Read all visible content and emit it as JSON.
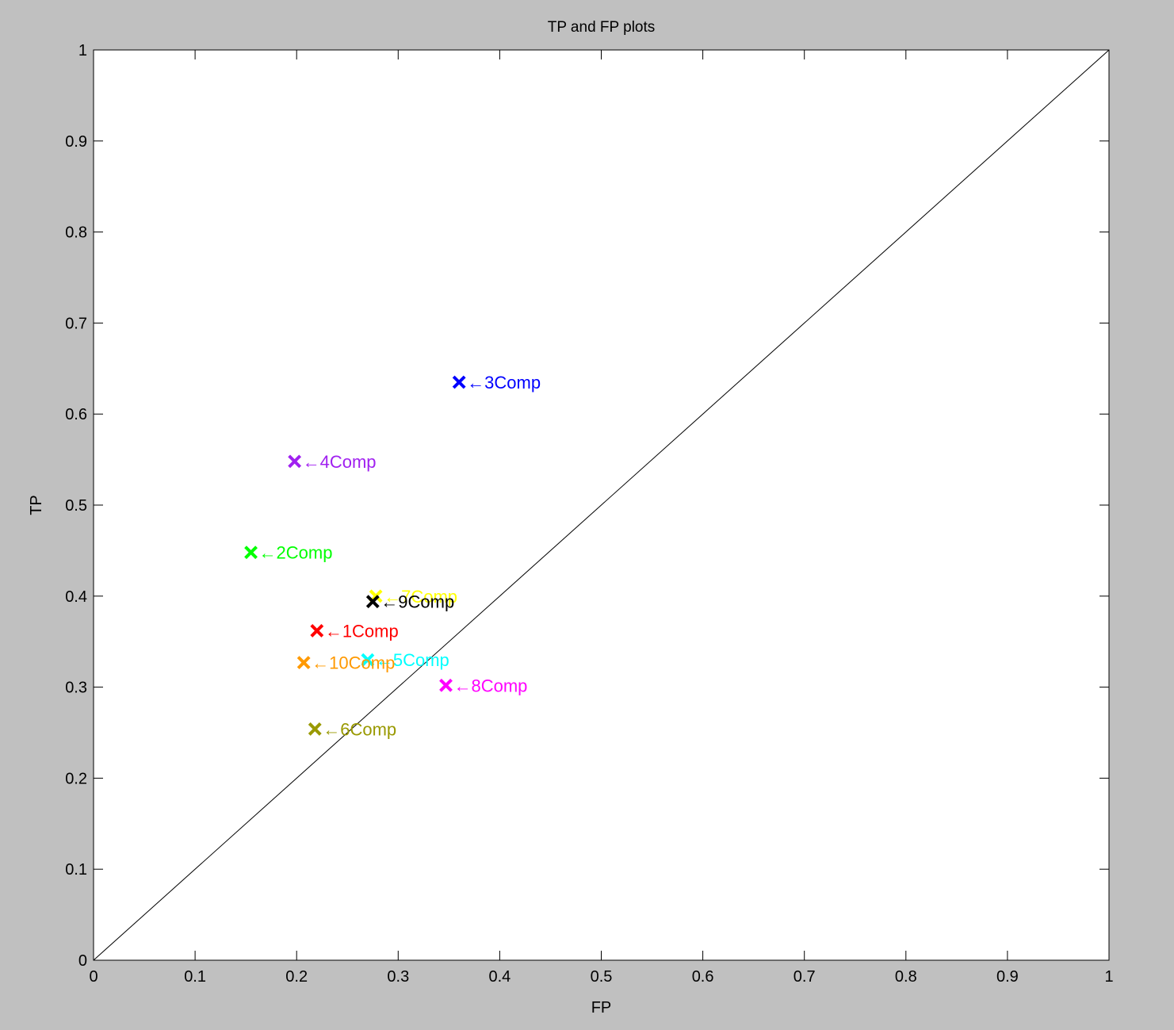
{
  "chart_data": {
    "type": "scatter",
    "title": "TP and FP plots",
    "xlabel": "FP",
    "ylabel": "TP",
    "xlim": [
      0,
      1
    ],
    "ylim": [
      0,
      1
    ],
    "xticks": [
      "0",
      "0.1",
      "0.2",
      "0.3",
      "0.4",
      "0.5",
      "0.6",
      "0.7",
      "0.8",
      "0.9",
      "1"
    ],
    "yticks": [
      "0",
      "0.1",
      "0.2",
      "0.3",
      "0.4",
      "0.5",
      "0.6",
      "0.7",
      "0.8",
      "0.9",
      "1"
    ],
    "grid": false,
    "reference_line": {
      "x": [
        0,
        1
      ],
      "y": [
        0,
        1
      ],
      "color": "#000000"
    },
    "points": [
      {
        "label": "1Comp",
        "x": 0.22,
        "y": 0.362,
        "color": "#ff0000"
      },
      {
        "label": "2Comp",
        "x": 0.155,
        "y": 0.448,
        "color": "#00ff00"
      },
      {
        "label": "3Comp",
        "x": 0.36,
        "y": 0.635,
        "color": "#0000ff"
      },
      {
        "label": "4Comp",
        "x": 0.198,
        "y": 0.548,
        "color": "#a020f0"
      },
      {
        "label": "5Comp",
        "x": 0.27,
        "y": 0.33,
        "color": "#00ffff"
      },
      {
        "label": "6Comp",
        "x": 0.218,
        "y": 0.254,
        "color": "#999900"
      },
      {
        "label": "7Comp",
        "x": 0.278,
        "y": 0.4,
        "color": "#ffff00"
      },
      {
        "label": "8Comp",
        "x": 0.347,
        "y": 0.302,
        "color": "#ff00ff"
      },
      {
        "label": "9Comp",
        "x": 0.275,
        "y": 0.394,
        "color": "#000000"
      },
      {
        "label": "10Comp",
        "x": 0.207,
        "y": 0.327,
        "color": "#ff9900"
      }
    ],
    "label_prefix": "←"
  },
  "colors": {
    "figure_background": "#c0c0c0",
    "axes_background": "#ffffff",
    "axis_color": "#000000"
  }
}
